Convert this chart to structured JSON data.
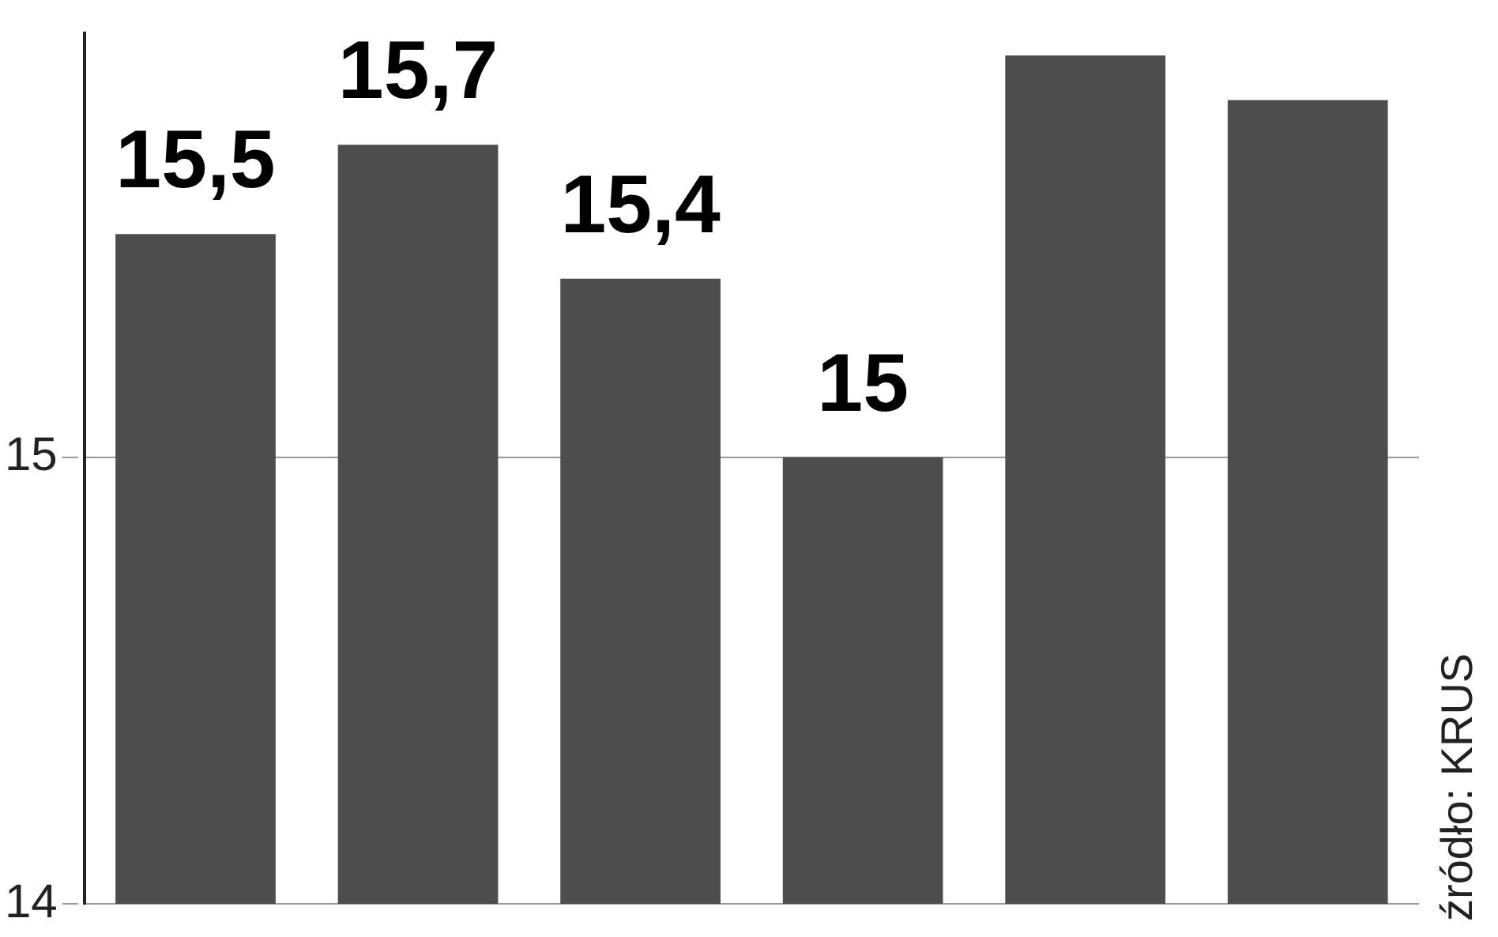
{
  "chart_data": {
    "type": "bar",
    "categories": [
      null,
      null,
      null,
      null,
      null,
      null
    ],
    "values": [
      15.5,
      15.7,
      15.4,
      15.0,
      15.9,
      15.8
    ],
    "value_labels": [
      "15,5",
      "15,7",
      "15,4",
      "15",
      null,
      null
    ],
    "color": "#4d4d4d",
    "ylim": [
      14,
      15.95
    ],
    "yticks": [
      14,
      15
    ],
    "grid": "y",
    "annotations": [
      "źródło: KRUS"
    ]
  }
}
